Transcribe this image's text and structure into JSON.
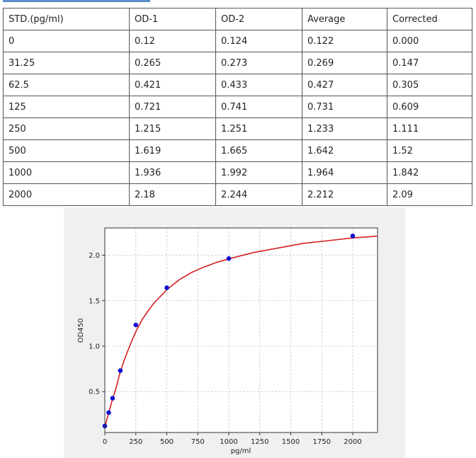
{
  "table": {
    "headers": [
      "STD.(pg/ml)",
      "OD-1",
      "OD-2",
      "Average",
      "Corrected"
    ],
    "rows": [
      [
        "0",
        "0.12",
        "0.124",
        "0.122",
        "0.000"
      ],
      [
        "31.25",
        "0.265",
        "0.273",
        "0.269",
        "0.147"
      ],
      [
        "62.5",
        "0.421",
        "0.433",
        "0.427",
        "0.305"
      ],
      [
        "125",
        "0.721",
        "0.741",
        "0.731",
        "0.609"
      ],
      [
        "250",
        "1.215",
        "1.251",
        "1.233",
        "1.111"
      ],
      [
        "500",
        "1.619",
        "1.665",
        "1.642",
        "1.52"
      ],
      [
        "1000",
        "1.936",
        "1.992",
        "1.964",
        "1.842"
      ],
      [
        "2000",
        "2.18",
        "2.244",
        "2.212",
        "2.09"
      ]
    ]
  },
  "chart_data": {
    "type": "scatter",
    "xlabel": "pg/ml",
    "ylabel": "OD450",
    "xlim": [
      0,
      2200
    ],
    "ylim": [
      0.05,
      2.3
    ],
    "xticks": [
      0,
      250,
      500,
      750,
      1000,
      1250,
      1500,
      1750,
      2000
    ],
    "yticks": [
      0.5,
      1.0,
      1.5,
      2.0
    ],
    "xtick_labels": [
      "0",
      "250",
      "500",
      "750",
      "1000",
      "1250",
      "1500",
      "1750",
      "2000"
    ],
    "ytick_labels": [
      "0.5",
      "1.0",
      "1.5",
      "2.0"
    ],
    "grid": true,
    "series": [
      {
        "x": [
          0,
          31.25,
          62.5,
          125,
          250,
          500,
          1000,
          2000
        ],
        "y": [
          0.122,
          0.269,
          0.427,
          0.731,
          1.233,
          1.642,
          1.964,
          2.212
        ],
        "marker_color": "#1010d0"
      }
    ],
    "fit_curve": {
      "color": "#d42020",
      "points": [
        [
          0,
          0.11
        ],
        [
          20,
          0.21
        ],
        [
          40,
          0.31
        ],
        [
          60,
          0.405
        ],
        [
          90,
          0.54
        ],
        [
          125,
          0.72
        ],
        [
          160,
          0.86
        ],
        [
          200,
          1.0
        ],
        [
          250,
          1.16
        ],
        [
          300,
          1.29
        ],
        [
          350,
          1.39
        ],
        [
          400,
          1.48
        ],
        [
          450,
          1.55
        ],
        [
          500,
          1.62
        ],
        [
          600,
          1.73
        ],
        [
          700,
          1.81
        ],
        [
          800,
          1.87
        ],
        [
          900,
          1.92
        ],
        [
          1000,
          1.96
        ],
        [
          1200,
          2.03
        ],
        [
          1400,
          2.08
        ],
        [
          1600,
          2.13
        ],
        [
          1800,
          2.16
        ],
        [
          2000,
          2.19
        ],
        [
          2200,
          2.21
        ]
      ]
    }
  }
}
